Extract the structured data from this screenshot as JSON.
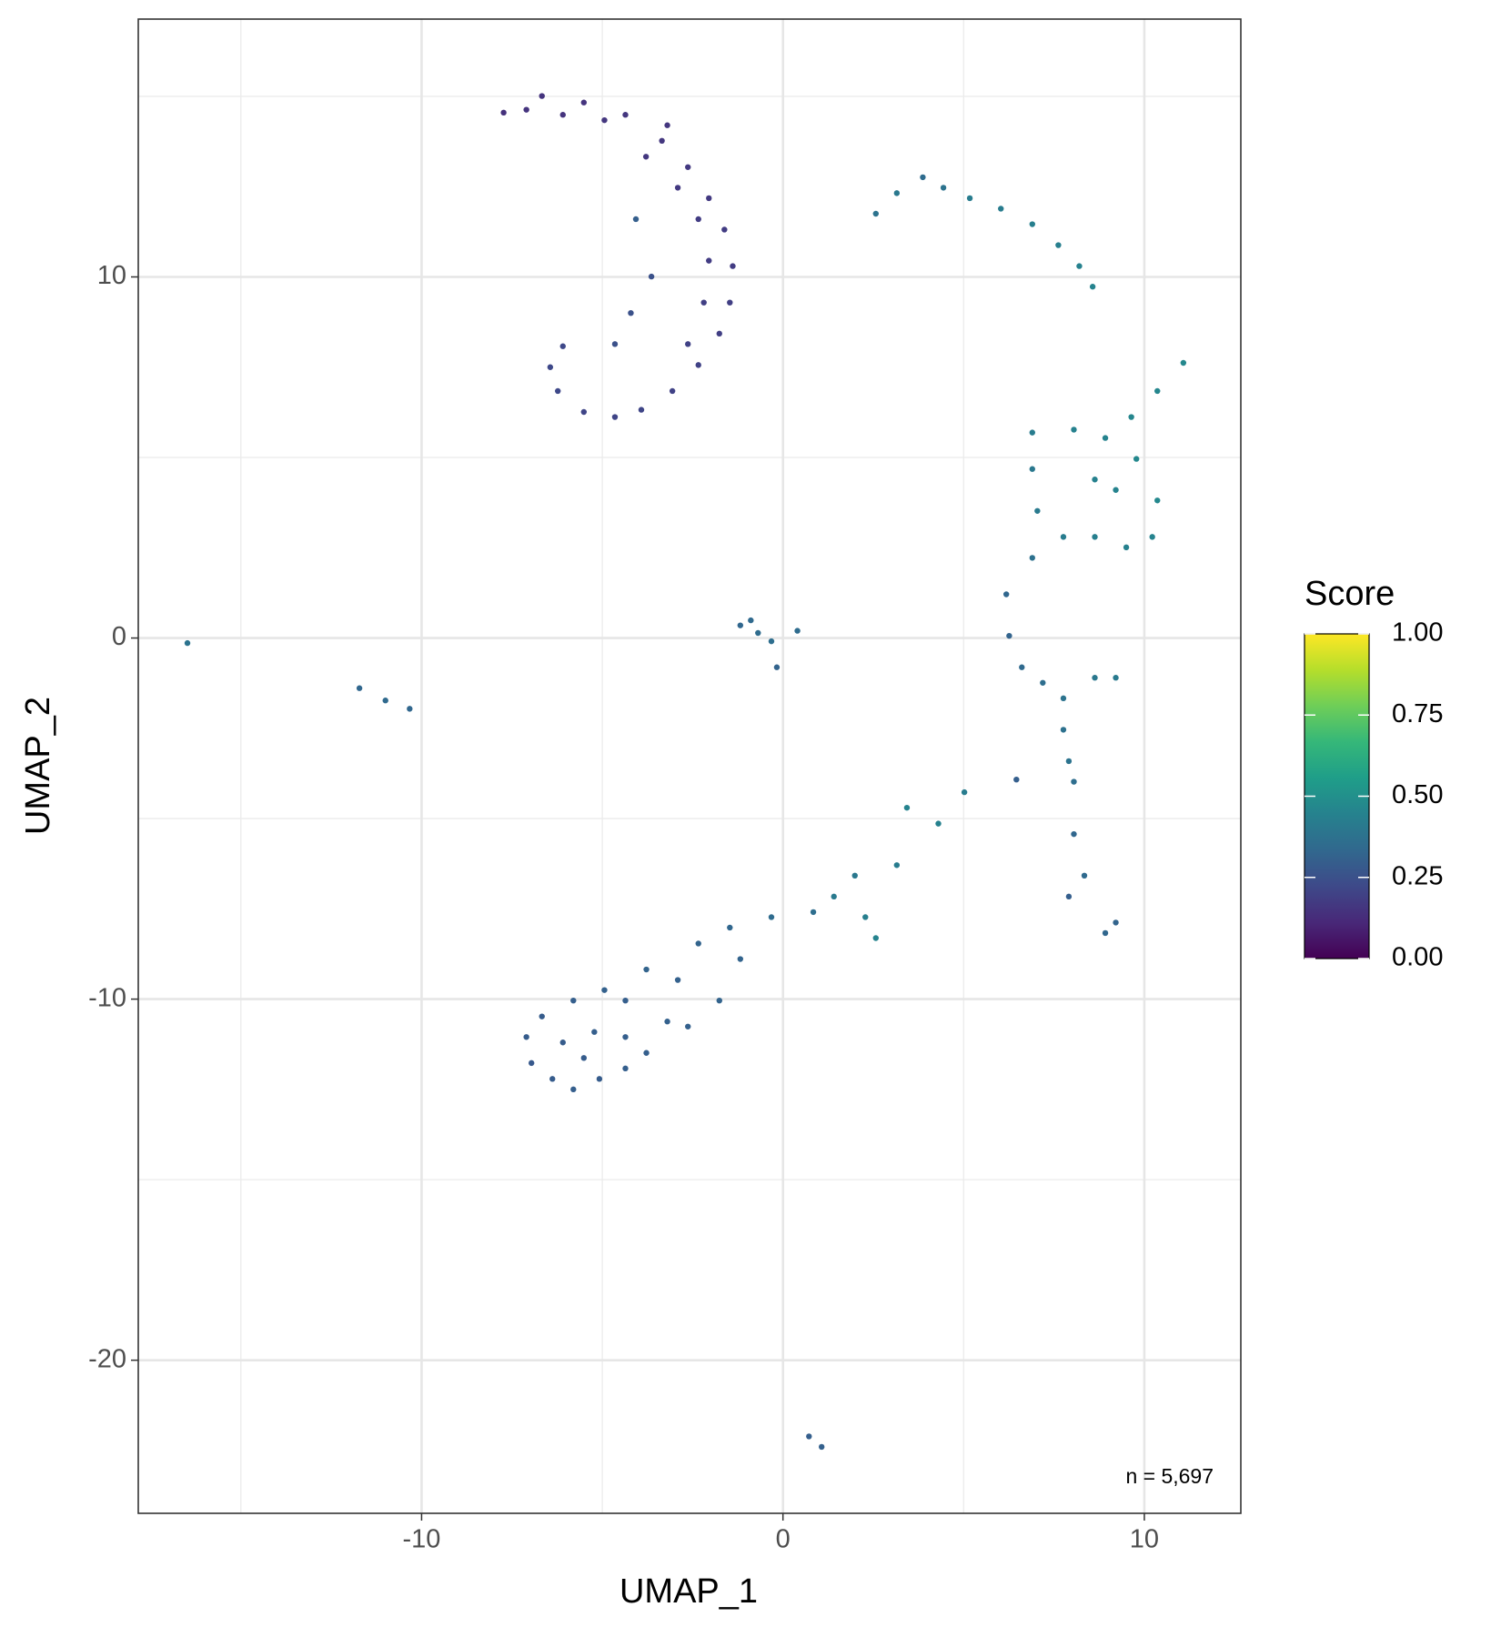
{
  "chart_data": {
    "type": "scatter",
    "xlabel": "UMAP_1",
    "ylabel": "UMAP_2",
    "annotation": "n = 5,697",
    "xlim": [
      -17.84,
      12.67
    ],
    "ylim": [
      -24.24,
      17.14
    ],
    "xticks": [
      -10,
      0,
      10
    ],
    "yticks": [
      -20,
      -10,
      0,
      10
    ],
    "minor_xticks": [
      -15,
      -5,
      5
    ],
    "minor_yticks": [
      -15,
      -5,
      5,
      15
    ],
    "grid": true,
    "colorbar": {
      "title": "Score",
      "colormap": "viridis",
      "lim": [
        0,
        1
      ],
      "ticks": [
        {
          "value": 0,
          "label": "0.00"
        },
        {
          "value": 0.25,
          "label": "0.25"
        },
        {
          "value": 0.5,
          "label": "0.50"
        },
        {
          "value": 0.75,
          "label": "0.75"
        },
        {
          "value": 1,
          "label": "1.00"
        }
      ]
    },
    "x": [
      -7.73,
      -6.67,
      -5.51,
      -4.36,
      -3.35,
      -2.63,
      -2.05,
      -1.62,
      -1.39,
      -1.47,
      -1.76,
      -2.34,
      -3.06,
      -3.92,
      -4.65,
      -5.51,
      -6.23,
      -6.44,
      -6.09,
      -6.09,
      -4.94,
      -3.79,
      -2.91,
      -2.34,
      -2.05,
      -2.19,
      -2.63,
      -7.1,
      -3.2,
      -4.07,
      -3.64,
      -4.21,
      -4.65,
      2.57,
      3.15,
      3.87,
      4.44,
      5.17,
      6.03,
      6.9,
      7.62,
      8.2,
      8.57,
      -0.69,
      -1.18,
      -0.32,
      -0.17,
      -0.89,
      0.4,
      -16.48,
      -11.72,
      -11.0,
      -10.33,
      11.08,
      10.36,
      9.64,
      6.9,
      8.05,
      8.92,
      9.78,
      10.36,
      10.22,
      9.5,
      8.63,
      7.76,
      6.9,
      7.04,
      8.63,
      9.21,
      6.9,
      6.18,
      6.26,
      6.61,
      7.19,
      7.76,
      8.63,
      9.21,
      7.76,
      7.91,
      8.05,
      6.46,
      8.05,
      8.34,
      7.91,
      9.21,
      8.92,
      5.02,
      4.3,
      3.43,
      3.15,
      2.28,
      2.57,
      1.99,
      1.41,
      0.84,
      -0.32,
      -1.47,
      -1.18,
      -2.34,
      -2.91,
      -3.78,
      -4.36,
      -3.2,
      -4.94,
      -5.8,
      -6.67,
      -7.1,
      -6.96,
      -6.38,
      -5.8,
      -5.08,
      -4.36,
      -3.78,
      -2.63,
      -1.76,
      -6.09,
      -5.22,
      -4.36,
      -5.51,
      0.72,
      1.07
    ],
    "y": [
      14.55,
      15.01,
      14.83,
      14.49,
      13.77,
      13.04,
      12.18,
      11.31,
      10.3,
      9.29,
      8.43,
      7.56,
      6.84,
      6.32,
      6.12,
      6.26,
      6.84,
      7.5,
      8.08,
      14.49,
      14.34,
      13.33,
      12.47,
      11.6,
      10.45,
      9.29,
      8.14,
      14.63,
      14.2,
      11.6,
      10.01,
      9.0,
      8.14,
      11.75,
      12.32,
      12.76,
      12.47,
      12.18,
      11.89,
      11.46,
      10.88,
      10.3,
      9.73,
      0.14,
      0.35,
      -0.09,
      -0.81,
      0.49,
      0.2,
      -0.14,
      -1.39,
      -1.73,
      -1.96,
      7.62,
      6.84,
      6.12,
      5.69,
      5.77,
      5.54,
      4.96,
      3.81,
      2.8,
      2.51,
      2.8,
      2.8,
      4.68,
      3.52,
      4.39,
      4.1,
      2.22,
      1.21,
      0.06,
      -0.81,
      -1.24,
      -1.67,
      -1.1,
      -1.1,
      -2.54,
      -3.41,
      -3.98,
      -3.92,
      -5.43,
      -6.58,
      -7.16,
      -7.88,
      -8.17,
      -4.27,
      -5.14,
      -4.7,
      -6.29,
      -7.73,
      -8.31,
      -6.58,
      -7.16,
      -7.59,
      -7.73,
      -8.02,
      -8.89,
      -8.46,
      -9.47,
      -9.18,
      -10.04,
      -10.62,
      -9.75,
      -10.04,
      -10.48,
      -11.05,
      -11.77,
      -12.21,
      -12.5,
      -12.21,
      -11.92,
      -11.49,
      -10.76,
      -10.04,
      -11.2,
      -10.91,
      -11.05,
      -11.63,
      -22.11,
      -22.4
    ],
    "values": [
      0.14,
      0.15,
      0.15,
      0.16,
      0.16,
      0.17,
      0.17,
      0.18,
      0.18,
      0.19,
      0.19,
      0.2,
      0.2,
      0.21,
      0.21,
      0.21,
      0.22,
      0.22,
      0.22,
      0.15,
      0.16,
      0.16,
      0.17,
      0.18,
      0.18,
      0.19,
      0.2,
      0.15,
      0.16,
      0.3,
      0.25,
      0.25,
      0.25,
      0.38,
      0.4,
      0.35,
      0.38,
      0.42,
      0.42,
      0.43,
      0.43,
      0.44,
      0.45,
      0.35,
      0.33,
      0.36,
      0.32,
      0.34,
      0.35,
      0.38,
      0.33,
      0.34,
      0.33,
      0.47,
      0.46,
      0.46,
      0.42,
      0.44,
      0.45,
      0.47,
      0.47,
      0.45,
      0.44,
      0.43,
      0.42,
      0.4,
      0.41,
      0.44,
      0.45,
      0.37,
      0.33,
      0.32,
      0.34,
      0.36,
      0.38,
      0.4,
      0.41,
      0.37,
      0.38,
      0.36,
      0.3,
      0.33,
      0.34,
      0.3,
      0.32,
      0.33,
      0.42,
      0.44,
      0.45,
      0.42,
      0.43,
      0.45,
      0.4,
      0.41,
      0.36,
      0.35,
      0.33,
      0.32,
      0.32,
      0.31,
      0.32,
      0.3,
      0.31,
      0.31,
      0.3,
      0.29,
      0.29,
      0.28,
      0.29,
      0.3,
      0.29,
      0.3,
      0.3,
      0.31,
      0.32,
      0.29,
      0.3,
      0.3,
      0.29,
      0.3,
      0.31
    ]
  }
}
